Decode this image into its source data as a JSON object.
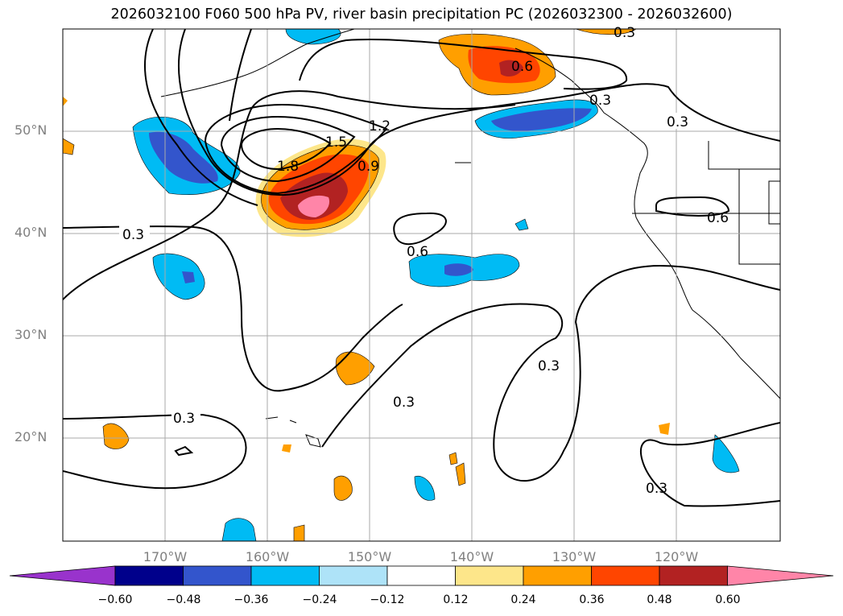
{
  "title": "2026032100 F060 500 hPa PV, river basin precipitation PC (2026032300 - 2026032600)",
  "map": {
    "lat_ticks": [
      "50°N",
      "40°N",
      "30°N",
      "20°N"
    ],
    "lon_ticks": [
      "170°W",
      "160°W",
      "150°W",
      "140°W",
      "130°W",
      "120°W"
    ],
    "contour_labels": [
      "0.3",
      "0.3",
      "0.6",
      "0.9",
      "1.2",
      "1.5",
      "1.8",
      "0.6",
      "0.6",
      "0.3",
      "0.3",
      "0.3",
      "0.3",
      "0.3",
      "0.3"
    ],
    "contour_color": "#000000",
    "grid": true
  },
  "colorbar": {
    "labels": [
      "−0.60",
      "−0.48",
      "−0.36",
      "−0.24",
      "−0.12",
      "0.12",
      "0.24",
      "0.36",
      "0.48",
      "0.60"
    ],
    "colors": [
      "#9933cc",
      "#00008b",
      "#3355cc",
      "#00bbf4",
      "#aee3f8",
      "#ffffff",
      "#fde68a",
      "#ff9f00",
      "#ff4500",
      "#b22222",
      "#ff85a8"
    ]
  }
}
